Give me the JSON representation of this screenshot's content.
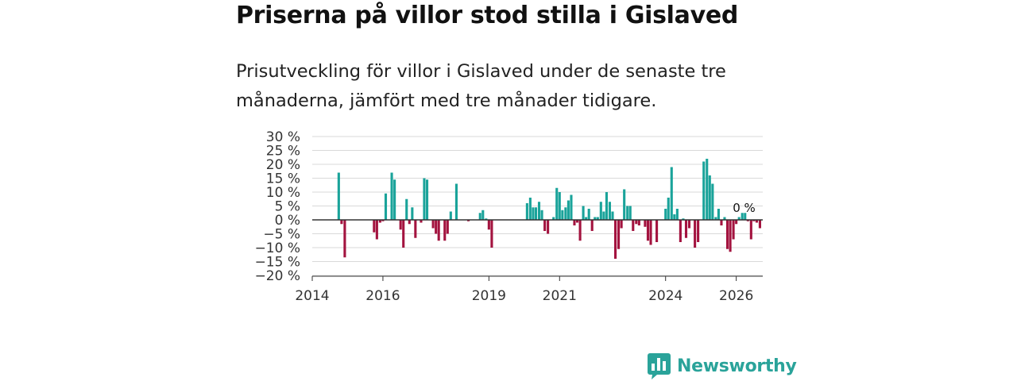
{
  "header": {
    "title": "Priserna på villor stod stilla i Gislaved",
    "subtitle": "Prisutveckling för villor i Gislaved under de senaste tre månaderna, jämfört med tre månader tidigare."
  },
  "colors": {
    "positive": "#1aa39a",
    "negative": "#a3133f",
    "grid": "#d9d9d9",
    "axis": "#333333",
    "logo": "#2aa39a"
  },
  "logo": {
    "text": "Newsworthy",
    "icon": "chart-speech-bubble-icon"
  },
  "chart_data": {
    "type": "bar",
    "title": "Priserna på villor stod stilla i Gislaved",
    "xlabel": "",
    "ylabel": "",
    "ylim": [
      -20,
      30
    ],
    "yticks": [
      30,
      25,
      20,
      15,
      10,
      5,
      0,
      -5,
      -10,
      -15,
      -20
    ],
    "ytick_labels": [
      "30 %",
      "25 %",
      "20 %",
      "15 %",
      "10 %",
      "5 %",
      "0 %",
      "−5 %",
      "−10 %",
      "−15 %",
      "−20 %"
    ],
    "xlim": [
      2014.0,
      2026.75
    ],
    "xticks": [
      2014,
      2016,
      2019,
      2021,
      2024,
      2026
    ],
    "xtick_labels": [
      "2014",
      "2016",
      "2019",
      "2021",
      "2024",
      "2026"
    ],
    "annotation": {
      "text": "0 %",
      "x": 2026.08,
      "y": 0
    },
    "series": [
      {
        "name": "Prisutveckling",
        "points": [
          [
            2014.75,
            17
          ],
          [
            2014.83,
            -1.5
          ],
          [
            2014.92,
            -13.5
          ],
          [
            2015.75,
            -4.5
          ],
          [
            2015.83,
            -7
          ],
          [
            2015.92,
            -1
          ],
          [
            2016.0,
            -0.5
          ],
          [
            2016.08,
            9.5
          ],
          [
            2016.25,
            17
          ],
          [
            2016.33,
            14.5
          ],
          [
            2016.5,
            -3.5
          ],
          [
            2016.58,
            -10
          ],
          [
            2016.67,
            7.5
          ],
          [
            2016.75,
            -1.5
          ],
          [
            2016.83,
            4.5
          ],
          [
            2016.92,
            -6.5
          ],
          [
            2017.08,
            -1
          ],
          [
            2017.17,
            15
          ],
          [
            2017.25,
            14.5
          ],
          [
            2017.42,
            -3
          ],
          [
            2017.5,
            -5
          ],
          [
            2017.58,
            -7.5
          ],
          [
            2017.75,
            -7.5
          ],
          [
            2017.83,
            -5
          ],
          [
            2017.92,
            3
          ],
          [
            2018.08,
            13
          ],
          [
            2018.42,
            -0.5
          ],
          [
            2018.75,
            2.5
          ],
          [
            2018.83,
            3.5
          ],
          [
            2018.92,
            0.5
          ],
          [
            2019.0,
            -3.5
          ],
          [
            2019.08,
            -10
          ],
          [
            2020.08,
            6
          ],
          [
            2020.17,
            8
          ],
          [
            2020.25,
            4.5
          ],
          [
            2020.33,
            4.5
          ],
          [
            2020.42,
            6.5
          ],
          [
            2020.5,
            3.5
          ],
          [
            2020.58,
            -4
          ],
          [
            2020.67,
            -5
          ],
          [
            2020.83,
            1
          ],
          [
            2020.92,
            11.5
          ],
          [
            2021.0,
            10
          ],
          [
            2021.08,
            3.5
          ],
          [
            2021.17,
            4.5
          ],
          [
            2021.25,
            7
          ],
          [
            2021.33,
            9
          ],
          [
            2021.42,
            -2
          ],
          [
            2021.5,
            -1
          ],
          [
            2021.58,
            -7.5
          ],
          [
            2021.67,
            5
          ],
          [
            2021.75,
            1
          ],
          [
            2021.83,
            4
          ],
          [
            2021.92,
            -4
          ],
          [
            2022.0,
            1
          ],
          [
            2022.08,
            1
          ],
          [
            2022.17,
            6.5
          ],
          [
            2022.25,
            3
          ],
          [
            2022.33,
            10
          ],
          [
            2022.42,
            6.5
          ],
          [
            2022.5,
            3
          ],
          [
            2022.58,
            -14
          ],
          [
            2022.67,
            -10.5
          ],
          [
            2022.75,
            -3
          ],
          [
            2022.83,
            11
          ],
          [
            2022.92,
            5
          ],
          [
            2023.0,
            5
          ],
          [
            2023.08,
            -4
          ],
          [
            2023.17,
            -1.5
          ],
          [
            2023.25,
            -2
          ],
          [
            2023.42,
            -2.5
          ],
          [
            2023.5,
            -7.5
          ],
          [
            2023.58,
            -9
          ],
          [
            2023.75,
            -8
          ],
          [
            2024.0,
            4
          ],
          [
            2024.08,
            8
          ],
          [
            2024.17,
            19
          ],
          [
            2024.25,
            2
          ],
          [
            2024.33,
            4
          ],
          [
            2024.42,
            -8
          ],
          [
            2024.5,
            0.5
          ],
          [
            2024.58,
            -6.5
          ],
          [
            2024.67,
            -3
          ],
          [
            2024.83,
            -10
          ],
          [
            2024.92,
            -8
          ],
          [
            2025.08,
            21
          ],
          [
            2025.17,
            22
          ],
          [
            2025.25,
            16
          ],
          [
            2025.33,
            13
          ],
          [
            2025.42,
            1
          ],
          [
            2025.5,
            4
          ],
          [
            2025.58,
            -2
          ],
          [
            2025.67,
            1
          ],
          [
            2025.75,
            -10.5
          ],
          [
            2025.83,
            -11.5
          ],
          [
            2025.92,
            -7
          ],
          [
            2026.0,
            -1.5
          ],
          [
            2026.08,
            1
          ],
          [
            2026.17,
            2.5
          ],
          [
            2026.25,
            2.5
          ],
          [
            2026.33,
            -0.5
          ],
          [
            2026.42,
            -7
          ],
          [
            2026.5,
            -0.5
          ],
          [
            2026.58,
            -1
          ],
          [
            2026.67,
            -3
          ]
        ]
      }
    ]
  }
}
